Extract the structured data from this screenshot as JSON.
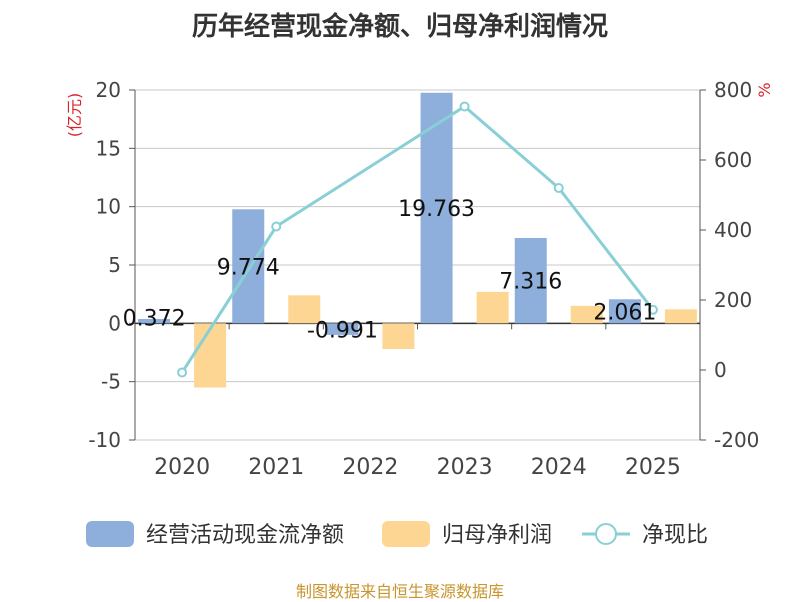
{
  "title": "历年经营现金净额、归母净利润情况",
  "source": "制图数据来自恒生聚源数据库",
  "colors": {
    "cash_flow": "#8eaedb",
    "net_profit": "#fed694",
    "ratio_line": "#88d0d6",
    "grid": "#c8c8c8",
    "axis": "#555555",
    "unit_text": "#d9232a",
    "source_text": "#c8952e"
  },
  "chart_data": {
    "type": "bar",
    "title": "历年经营现金净额、归母净利润情况",
    "categories": [
      "2020",
      "2021",
      "2022",
      "2023",
      "2024",
      "2025"
    ],
    "ylabel": "(亿元)",
    "y2label": "%",
    "ylim": [
      -10,
      20
    ],
    "yticks": [
      "20",
      "15",
      "10",
      "5",
      "0",
      "-5",
      "-10"
    ],
    "y2lim": [
      -200,
      800
    ],
    "y2ticks": [
      "800",
      "600",
      "400",
      "200",
      "0",
      "-200"
    ],
    "series": [
      {
        "name": "经营活动现金流净额",
        "kind": "bar",
        "axis": "left",
        "values": [
          0.372,
          9.774,
          -0.991,
          19.763,
          7.316,
          2.061
        ],
        "labels": [
          "0.372",
          "9.774",
          "-0.991",
          "19.763",
          "7.316",
          "2.061"
        ]
      },
      {
        "name": "归母净利润",
        "kind": "bar",
        "axis": "left",
        "values": [
          -5.5,
          2.4,
          -2.2,
          2.7,
          1.5,
          1.2
        ]
      },
      {
        "name": "净现比",
        "kind": "line",
        "axis": "right",
        "values": [
          -7,
          410,
          null,
          753,
          520,
          172
        ]
      }
    ],
    "legend": "bottom"
  }
}
